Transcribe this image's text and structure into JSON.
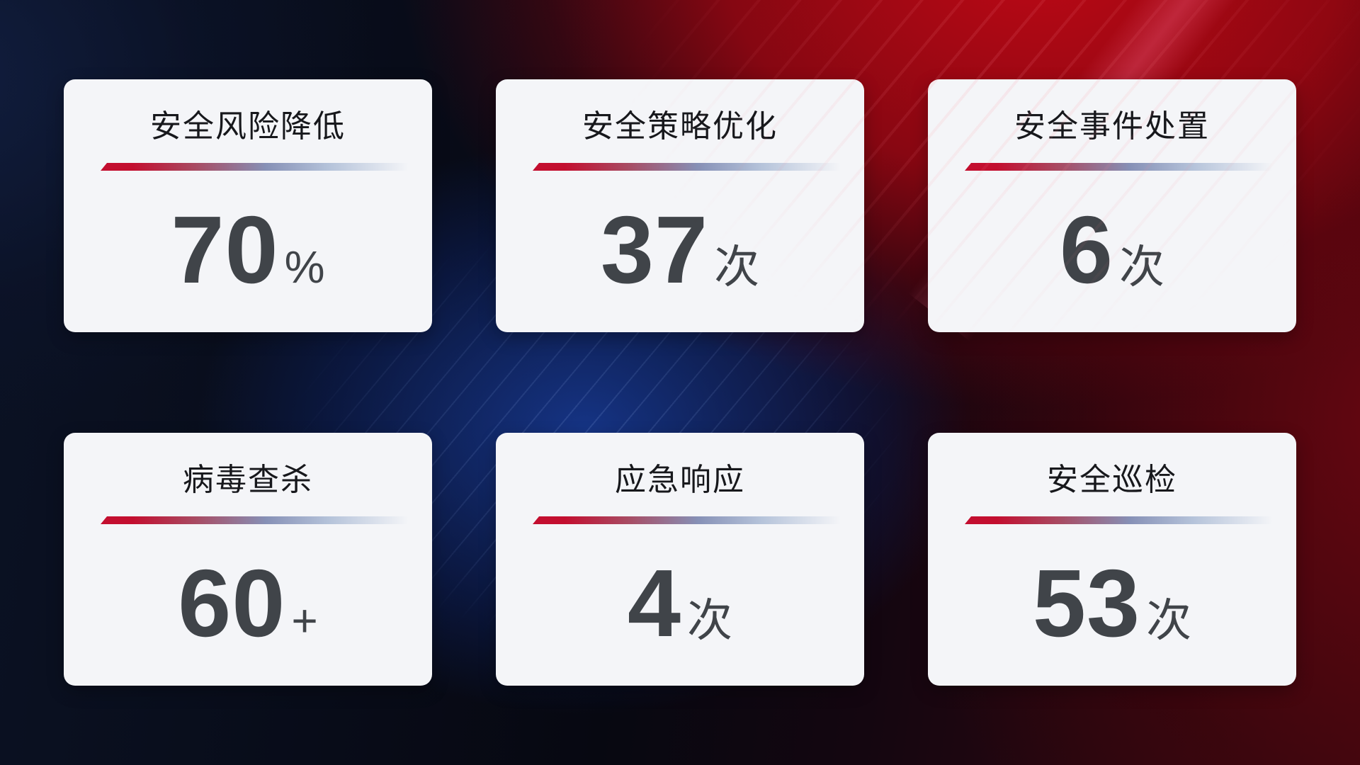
{
  "cards": [
    {
      "title": "安全风险降低",
      "value": "70",
      "unit": "%"
    },
    {
      "title": "安全策略优化",
      "value": "37",
      "unit": "次"
    },
    {
      "title": "安全事件处置",
      "value": "6",
      "unit": "次"
    },
    {
      "title": "病毒查杀",
      "value": "60",
      "unit": "+"
    },
    {
      "title": "应急响应",
      "value": "4",
      "unit": "次"
    },
    {
      "title": "安全巡检",
      "value": "53",
      "unit": "次"
    }
  ],
  "colors": {
    "card_bg": "#f4f5f8",
    "title_text": "#17181c",
    "value_text": "#404449",
    "divider_red": "#c30e2f",
    "divider_rose": "#a84b63",
    "divider_slate": "#8690b6",
    "divider_steel": "#b5c3da",
    "bg_navy": "#0b1224",
    "bg_red": "#c00912",
    "bg_blue": "#19409f"
  }
}
